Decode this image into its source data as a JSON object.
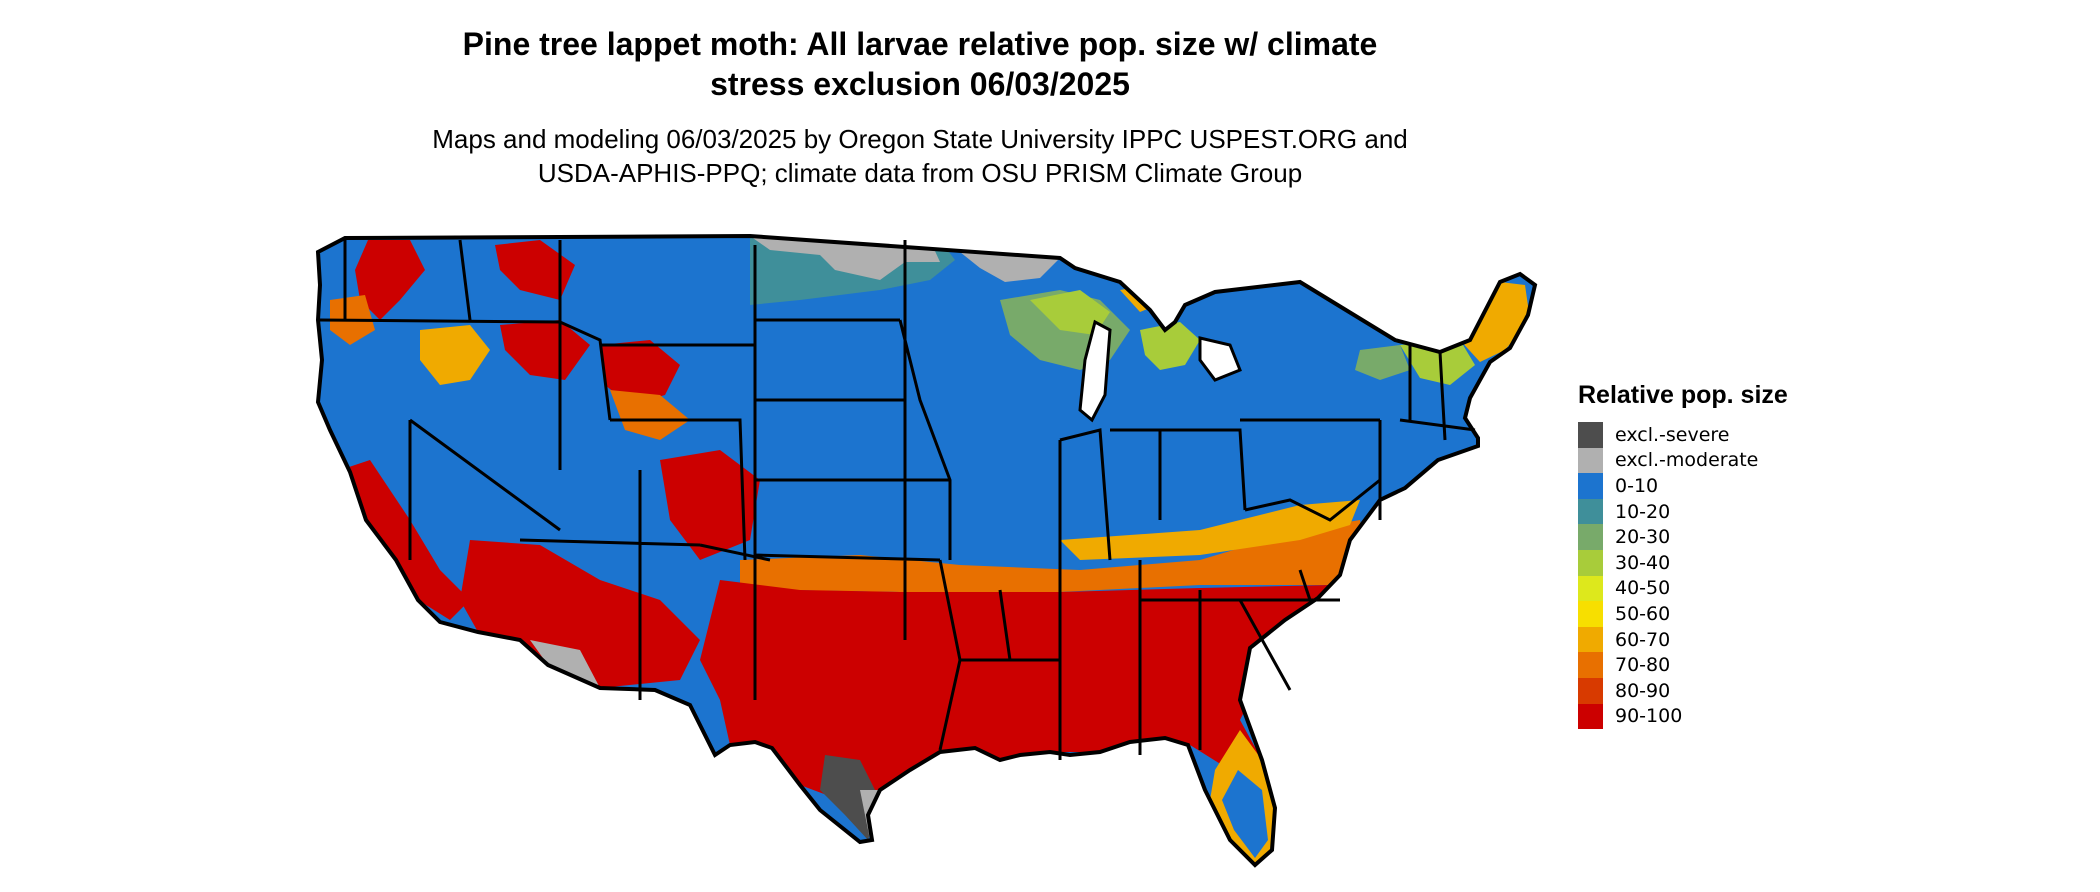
{
  "title": {
    "line1": "Pine tree lappet moth: All larvae relative pop. size w/ climate",
    "line2": "stress exclusion 06/03/2025"
  },
  "subtitle": {
    "line1": "Maps and modeling 06/03/2025 by Oregon State University IPPC USPEST.ORG and",
    "line2": "USDA-APHIS-PPQ; climate data from OSU PRISM Climate Group"
  },
  "legend": {
    "title": "Relative pop. size",
    "items": [
      {
        "label": "excl.-severe",
        "color": "#4d4d4d"
      },
      {
        "label": "excl.-moderate",
        "color": "#b0b0b0"
      },
      {
        "label": "0-10",
        "color": "#1c74cf"
      },
      {
        "label": "10-20",
        "color": "#3f8f9a"
      },
      {
        "label": "20-30",
        "color": "#78aa6a"
      },
      {
        "label": "30-40",
        "color": "#a8cc3a"
      },
      {
        "label": "40-50",
        "color": "#dde81c"
      },
      {
        "label": "50-60",
        "color": "#f7df00"
      },
      {
        "label": "60-70",
        "color": "#f0aa00"
      },
      {
        "label": "70-80",
        "color": "#e87000"
      },
      {
        "label": "80-90",
        "color": "#d83a00"
      },
      {
        "label": "90-100",
        "color": "#cc0000"
      }
    ]
  }
}
